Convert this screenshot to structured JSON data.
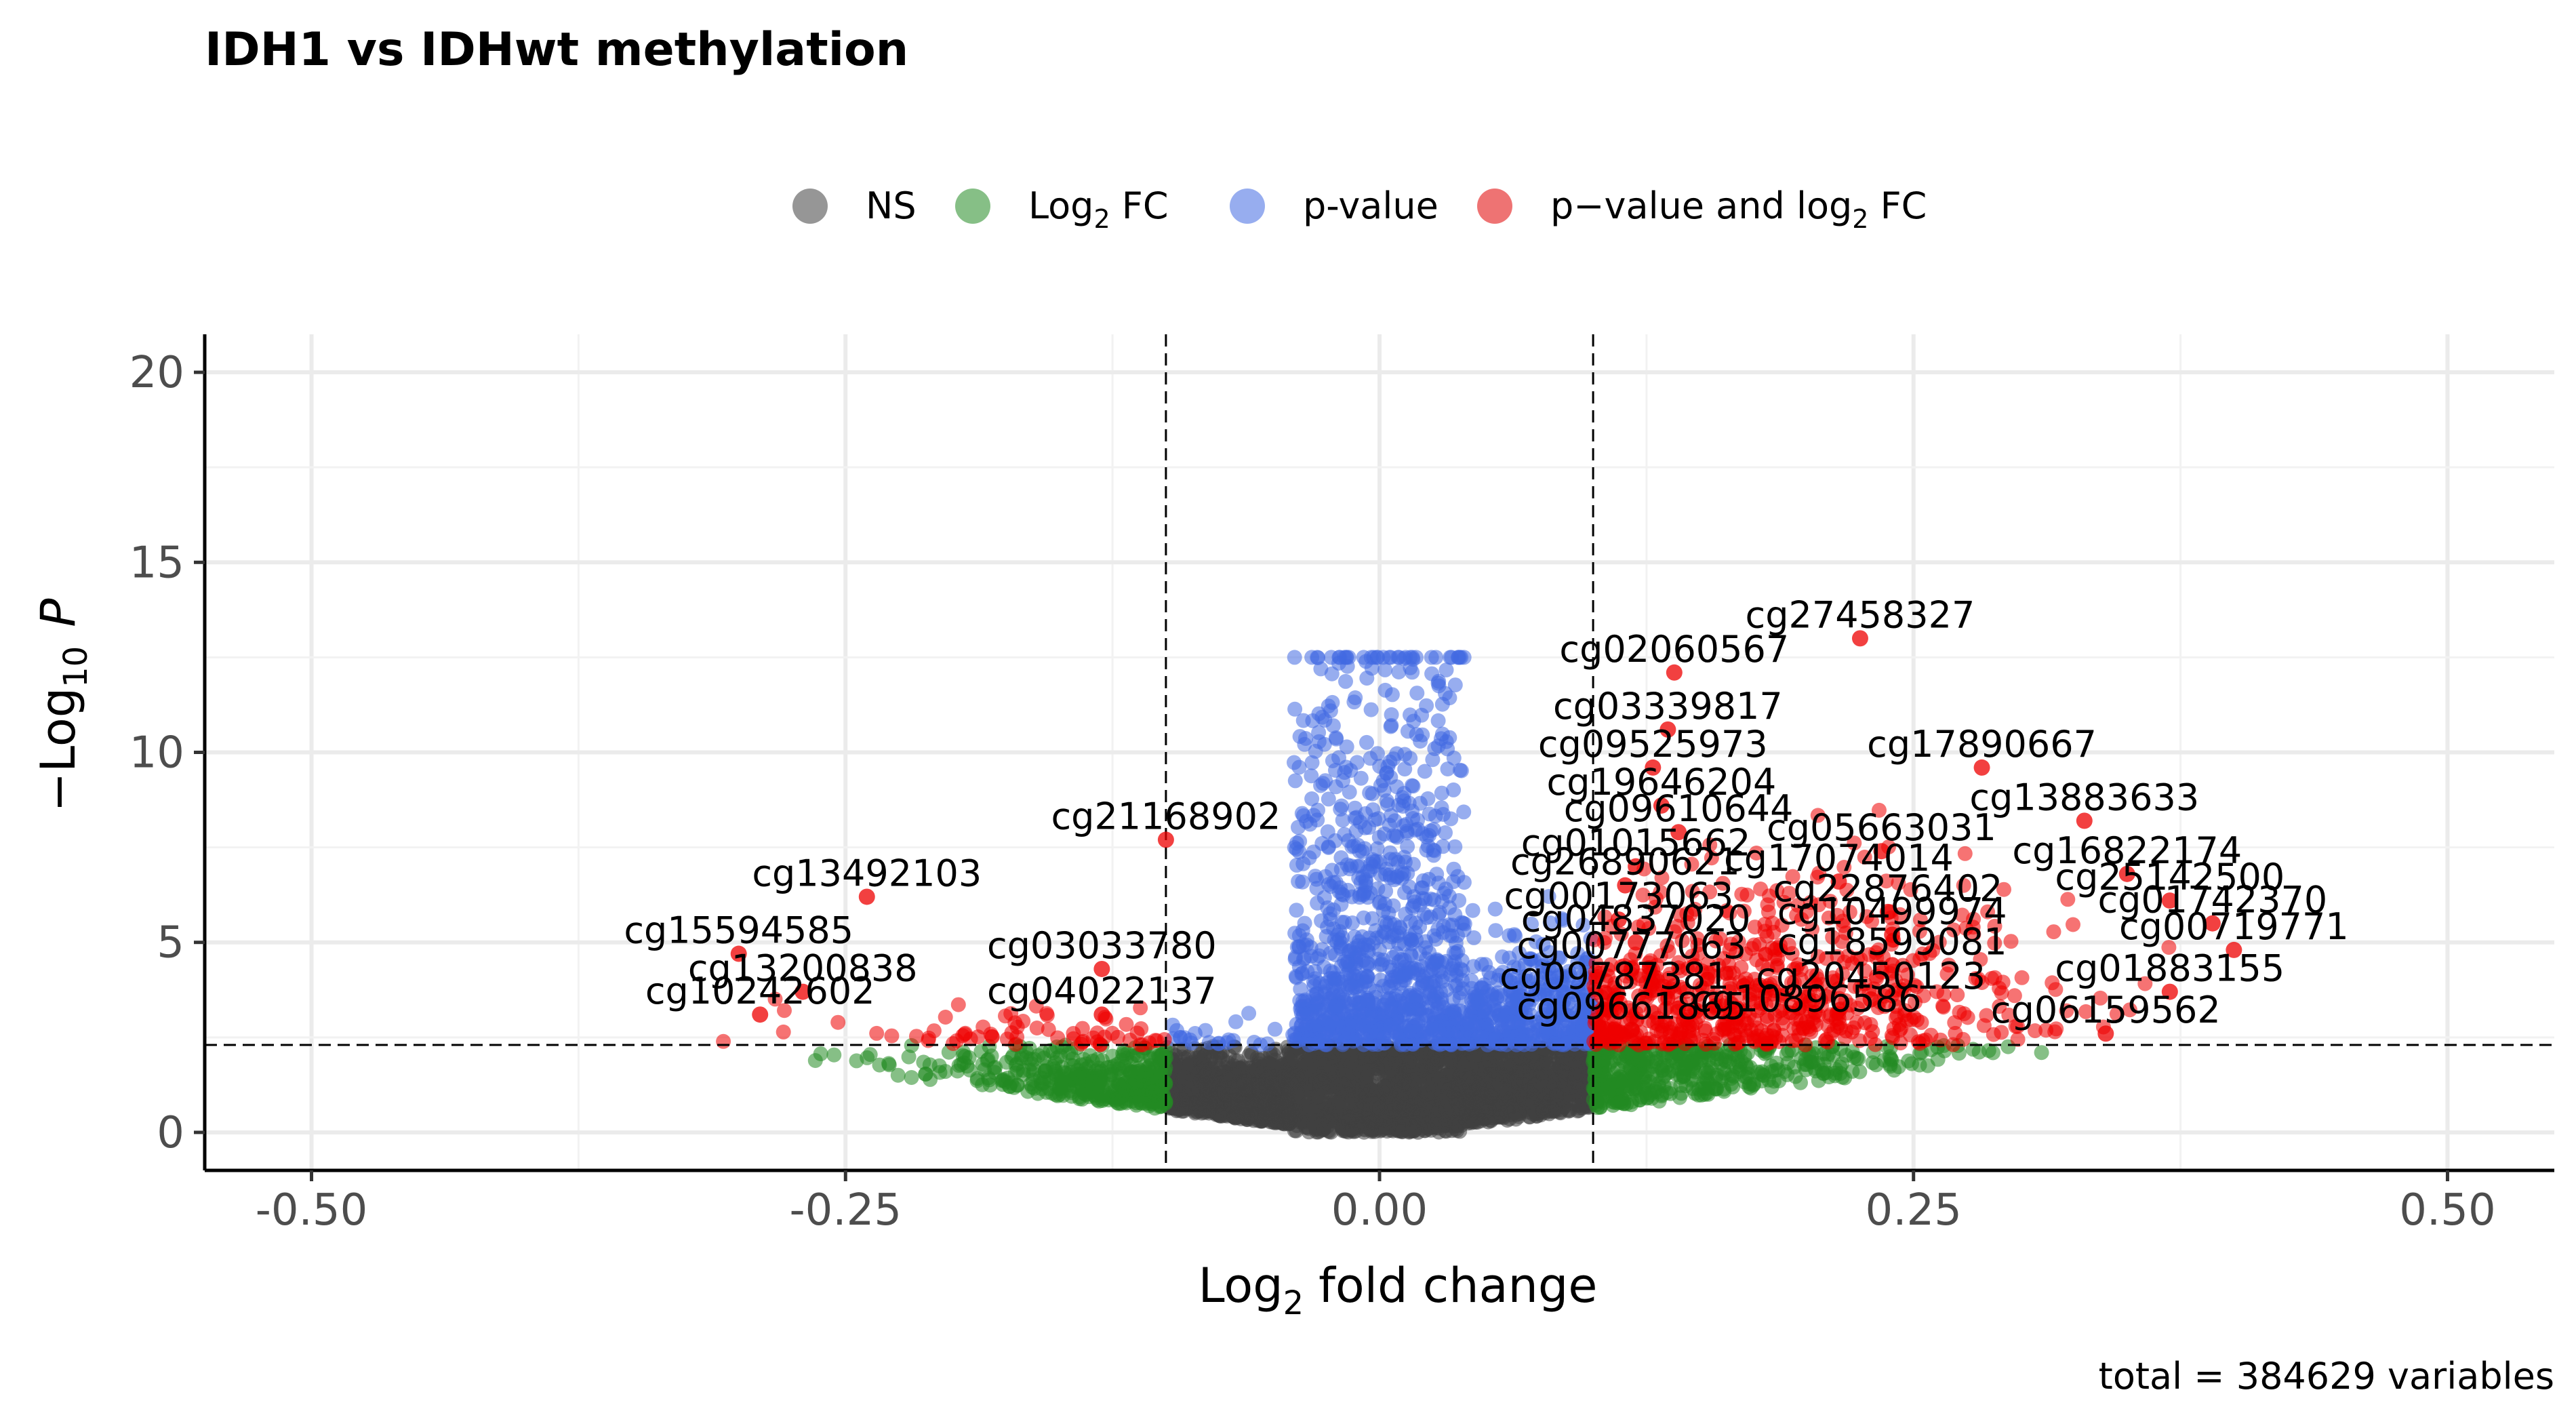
{
  "chart_data": {
    "type": "scatter",
    "title": "IDH1 vs IDHwt methylation",
    "xlabel": "fold change",
    "xlabel_prefix": "Log",
    "xlabel_sub": "2",
    "ylabel": "P",
    "ylabel_prefix": "−Log",
    "ylabel_sub": "10",
    "caption": "total = 384629 variables",
    "xlim": [
      -0.55,
      0.55
    ],
    "ylim": [
      -1,
      21
    ],
    "x_ticks": [
      -0.5,
      -0.25,
      0.0,
      0.25,
      0.5
    ],
    "x_tick_labels": [
      "-0.50",
      "-0.25",
      "0.00",
      "0.25",
      "0.50"
    ],
    "y_ticks": [
      0,
      5,
      10,
      15,
      20
    ],
    "y_tick_labels": [
      "0",
      "5",
      "10",
      "15",
      "20"
    ],
    "grid": true,
    "legend_position": "top",
    "fc_cutoff": 0.1,
    "p_cutoff_log10": 2.3,
    "legend": [
      {
        "key": "ns",
        "label": "NS",
        "color": "#404040"
      },
      {
        "key": "fc",
        "label": "Log",
        "label_sub": "2",
        "label_suffix": " FC",
        "color": "#228B22"
      },
      {
        "key": "p",
        "label": "p-value",
        "color": "#4169E1"
      },
      {
        "key": "both",
        "label": "p−value  and  log",
        "label_sub": "2",
        "label_suffix": " FC",
        "color": "#E00000"
      }
    ],
    "colors": {
      "ns": "#404040",
      "fc": "#228B22",
      "p": "#4169E1",
      "both": "#EE0000"
    },
    "labeled_points": [
      {
        "name": "cg27458327",
        "x": 0.225,
        "y": 13.0
      },
      {
        "name": "cg02060567",
        "x": 0.138,
        "y": 12.1
      },
      {
        "name": "cg03339817",
        "x": 0.135,
        "y": 10.6
      },
      {
        "name": "cg09525973",
        "x": 0.128,
        "y": 9.6
      },
      {
        "name": "cg17890667",
        "x": 0.282,
        "y": 9.6
      },
      {
        "name": "cg19646204",
        "x": 0.132,
        "y": 8.6
      },
      {
        "name": "cg13883633",
        "x": 0.33,
        "y": 8.2
      },
      {
        "name": "cg09610644",
        "x": 0.14,
        "y": 7.9
      },
      {
        "name": "cg21168902",
        "x": -0.1,
        "y": 7.7
      },
      {
        "name": "cg05663031",
        "x": 0.235,
        "y": 7.4
      },
      {
        "name": "cg01015662",
        "x": 0.12,
        "y": 7.0
      },
      {
        "name": "cg16822174",
        "x": 0.35,
        "y": 6.8
      },
      {
        "name": "cg17074014",
        "x": 0.215,
        "y": 6.6
      },
      {
        "name": "cg26890621",
        "x": 0.115,
        "y": 6.5
      },
      {
        "name": "cg13492103",
        "x": -0.24,
        "y": 6.2
      },
      {
        "name": "cg25142500",
        "x": 0.37,
        "y": 6.1
      },
      {
        "name": "cg22876402",
        "x": 0.238,
        "y": 5.8
      },
      {
        "name": "cg00173063",
        "x": 0.112,
        "y": 5.6
      },
      {
        "name": "cg01742370",
        "x": 0.39,
        "y": 5.5
      },
      {
        "name": "cg10499974",
        "x": 0.24,
        "y": 5.2
      },
      {
        "name": "cg04837020",
        "x": 0.12,
        "y": 5.0
      },
      {
        "name": "cg15594585",
        "x": -0.3,
        "y": 4.7
      },
      {
        "name": "cg00719771",
        "x": 0.4,
        "y": 4.8
      },
      {
        "name": "cg18599081",
        "x": 0.24,
        "y": 4.4
      },
      {
        "name": "cg00777063",
        "x": 0.118,
        "y": 4.3
      },
      {
        "name": "cg03033780",
        "x": -0.13,
        "y": 4.3
      },
      {
        "name": "cg13200838",
        "x": -0.27,
        "y": 3.7
      },
      {
        "name": "cg01883155",
        "x": 0.37,
        "y": 3.7
      },
      {
        "name": "cg20450123",
        "x": 0.23,
        "y": 3.5
      },
      {
        "name": "cg09787381",
        "x": 0.11,
        "y": 3.5
      },
      {
        "name": "cg10242602",
        "x": -0.29,
        "y": 3.1
      },
      {
        "name": "cg04022137",
        "x": -0.13,
        "y": 3.1
      },
      {
        "name": "cg10896586",
        "x": 0.2,
        "y": 2.9
      },
      {
        "name": "cg09661865",
        "x": 0.118,
        "y": 2.7
      },
      {
        "name": "cg06159562",
        "x": 0.34,
        "y": 2.6
      }
    ]
  }
}
